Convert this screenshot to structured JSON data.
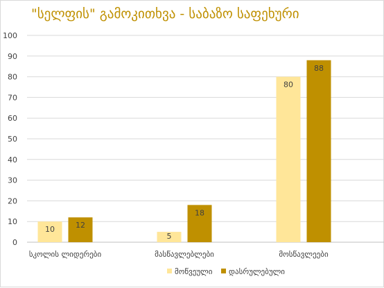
{
  "chart_data": {
    "type": "bar",
    "title": "\"სელფის\" გამოკითხვა - საბაზო საფეხური",
    "categories": [
      "სკოლის ლიდერები",
      "მასწავლებლები",
      "მოსწავლეები"
    ],
    "series": [
      {
        "name": "მოწვეული",
        "values": [
          10,
          5,
          80
        ],
        "color": "#ffe699"
      },
      {
        "name": "დასრულებული",
        "values": [
          12,
          18,
          88
        ],
        "color": "#bf9000"
      }
    ],
    "ylim": [
      0,
      100
    ],
    "yticks": [
      0,
      10,
      20,
      30,
      40,
      50,
      60,
      70,
      80,
      90,
      100
    ],
    "grid": true,
    "legend_position": "bottom",
    "title_color": "#bf9000"
  }
}
